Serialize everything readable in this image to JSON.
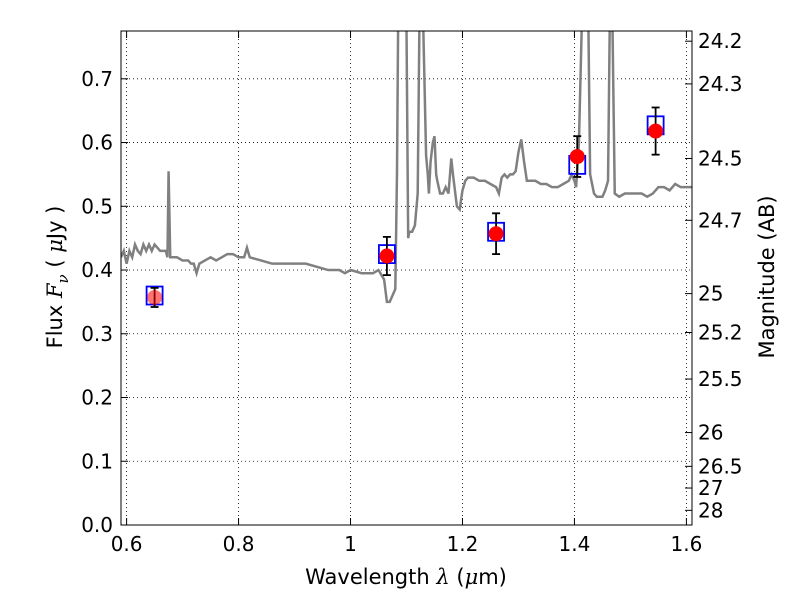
{
  "chart_data": {
    "type": "scatter",
    "title": "",
    "xlabel": {
      "prefix": "Wavelength",
      "symbol": "λ",
      "unit_open": " (",
      "unit_mu": "μ",
      "unit_rest": "m)"
    },
    "ylabel": {
      "prefix": "Flux",
      "symbol": "F",
      "subscript": "ν",
      "unit_open": " ( ",
      "unit_mu": "μ",
      "unit_rest": "Jy )"
    },
    "y2label": "Magnitude (AB)",
    "xlim": [
      0.59,
      1.61
    ],
    "ylim": [
      0.0,
      0.775
    ],
    "grid": true,
    "x_ticks": [
      {
        "value": 0.6,
        "label": "0.6"
      },
      {
        "value": 0.8,
        "label": "0.8"
      },
      {
        "value": 1.0,
        "label": "1"
      },
      {
        "value": 1.2,
        "label": "1.2"
      },
      {
        "value": 1.4,
        "label": "1.4"
      },
      {
        "value": 1.6,
        "label": "1.6"
      }
    ],
    "y_ticks": [
      {
        "value": 0.0,
        "label": "0.0"
      },
      {
        "value": 0.1,
        "label": "0.1"
      },
      {
        "value": 0.2,
        "label": "0.2"
      },
      {
        "value": 0.3,
        "label": "0.3"
      },
      {
        "value": 0.4,
        "label": "0.4"
      },
      {
        "value": 0.5,
        "label": "0.5"
      },
      {
        "value": 0.6,
        "label": "0.6"
      },
      {
        "value": 0.7,
        "label": "0.7"
      }
    ],
    "y2_ticks": [
      {
        "flux": 0.759,
        "label": "24.2"
      },
      {
        "flux": 0.692,
        "label": "24.3"
      },
      {
        "flux": 0.575,
        "label": "24.5"
      },
      {
        "flux": 0.478,
        "label": "24.7"
      },
      {
        "flux": 0.363,
        "label": "25"
      },
      {
        "flux": 0.302,
        "label": "25.2"
      },
      {
        "flux": 0.229,
        "label": "25.5"
      },
      {
        "flux": 0.145,
        "label": "26"
      },
      {
        "flux": 0.092,
        "label": "26.5"
      },
      {
        "flux": 0.058,
        "label": "27"
      },
      {
        "flux": 0.023,
        "label": "28"
      }
    ],
    "series": [
      {
        "kind": "model_spectrum",
        "color": "#808080",
        "points": [
          [
            0.59,
            0.42
          ],
          [
            0.595,
            0.43
          ],
          [
            0.6,
            0.41
          ],
          [
            0.605,
            0.43
          ],
          [
            0.61,
            0.42
          ],
          [
            0.615,
            0.44
          ],
          [
            0.62,
            0.43
          ],
          [
            0.625,
            0.425
          ],
          [
            0.63,
            0.44
          ],
          [
            0.635,
            0.43
          ],
          [
            0.64,
            0.44
          ],
          [
            0.645,
            0.43
          ],
          [
            0.65,
            0.44
          ],
          [
            0.655,
            0.435
          ],
          [
            0.66,
            0.43
          ],
          [
            0.665,
            0.43
          ],
          [
            0.67,
            0.43
          ],
          [
            0.673,
            0.42
          ],
          [
            0.675,
            0.555
          ],
          [
            0.678,
            0.42
          ],
          [
            0.69,
            0.42
          ],
          [
            0.7,
            0.415
          ],
          [
            0.71,
            0.415
          ],
          [
            0.715,
            0.41
          ],
          [
            0.72,
            0.41
          ],
          [
            0.725,
            0.395
          ],
          [
            0.73,
            0.41
          ],
          [
            0.74,
            0.415
          ],
          [
            0.75,
            0.42
          ],
          [
            0.76,
            0.415
          ],
          [
            0.77,
            0.42
          ],
          [
            0.78,
            0.425
          ],
          [
            0.79,
            0.425
          ],
          [
            0.8,
            0.42
          ],
          [
            0.81,
            0.42
          ],
          [
            0.815,
            0.435
          ],
          [
            0.82,
            0.42
          ],
          [
            0.84,
            0.415
          ],
          [
            0.86,
            0.41
          ],
          [
            0.88,
            0.41
          ],
          [
            0.9,
            0.41
          ],
          [
            0.92,
            0.41
          ],
          [
            0.94,
            0.405
          ],
          [
            0.96,
            0.4
          ],
          [
            0.98,
            0.4
          ],
          [
            0.99,
            0.395
          ],
          [
            1.0,
            0.4
          ],
          [
            1.02,
            0.395
          ],
          [
            1.04,
            0.395
          ],
          [
            1.05,
            0.4
          ],
          [
            1.06,
            0.385
          ],
          [
            1.065,
            0.35
          ],
          [
            1.07,
            0.35
          ],
          [
            1.08,
            0.37
          ],
          [
            1.083,
            0.55
          ],
          [
            1.085,
            0.78
          ],
          [
            1.1,
            0.78
          ],
          [
            1.103,
            0.45
          ],
          [
            1.105,
            0.46
          ],
          [
            1.11,
            0.46
          ],
          [
            1.115,
            0.47
          ],
          [
            1.12,
            0.52
          ],
          [
            1.123,
            0.78
          ],
          [
            1.13,
            0.78
          ],
          [
            1.133,
            0.66
          ],
          [
            1.135,
            0.58
          ],
          [
            1.138,
            0.55
          ],
          [
            1.14,
            0.52
          ],
          [
            1.143,
            0.57
          ],
          [
            1.147,
            0.6
          ],
          [
            1.15,
            0.61
          ],
          [
            1.153,
            0.55
          ],
          [
            1.155,
            0.54
          ],
          [
            1.16,
            0.52
          ],
          [
            1.165,
            0.52
          ],
          [
            1.17,
            0.53
          ],
          [
            1.175,
            0.52
          ],
          [
            1.18,
            0.575
          ],
          [
            1.183,
            0.55
          ],
          [
            1.19,
            0.5
          ],
          [
            1.195,
            0.495
          ],
          [
            1.2,
            0.525
          ],
          [
            1.205,
            0.54
          ],
          [
            1.21,
            0.545
          ],
          [
            1.22,
            0.545
          ],
          [
            1.23,
            0.54
          ],
          [
            1.24,
            0.54
          ],
          [
            1.25,
            0.535
          ],
          [
            1.26,
            0.53
          ],
          [
            1.265,
            0.52
          ],
          [
            1.27,
            0.545
          ],
          [
            1.275,
            0.55
          ],
          [
            1.28,
            0.545
          ],
          [
            1.285,
            0.55
          ],
          [
            1.29,
            0.55
          ],
          [
            1.295,
            0.555
          ],
          [
            1.3,
            0.585
          ],
          [
            1.305,
            0.605
          ],
          [
            1.31,
            0.57
          ],
          [
            1.315,
            0.54
          ],
          [
            1.32,
            0.54
          ],
          [
            1.33,
            0.54
          ],
          [
            1.34,
            0.535
          ],
          [
            1.35,
            0.535
          ],
          [
            1.36,
            0.53
          ],
          [
            1.37,
            0.53
          ],
          [
            1.38,
            0.535
          ],
          [
            1.39,
            0.54
          ],
          [
            1.395,
            0.55
          ],
          [
            1.4,
            0.54
          ],
          [
            1.403,
            0.53
          ],
          [
            1.408,
            0.6
          ],
          [
            1.413,
            0.78
          ],
          [
            1.425,
            0.78
          ],
          [
            1.428,
            0.55
          ],
          [
            1.435,
            0.52
          ],
          [
            1.44,
            0.515
          ],
          [
            1.45,
            0.515
          ],
          [
            1.455,
            0.525
          ],
          [
            1.46,
            0.54
          ],
          [
            1.463,
            0.78
          ],
          [
            1.468,
            0.78
          ],
          [
            1.472,
            0.52
          ],
          [
            1.48,
            0.515
          ],
          [
            1.49,
            0.52
          ],
          [
            1.5,
            0.52
          ],
          [
            1.52,
            0.52
          ],
          [
            1.53,
            0.515
          ],
          [
            1.54,
            0.52
          ],
          [
            1.55,
            0.53
          ],
          [
            1.56,
            0.53
          ],
          [
            1.57,
            0.525
          ],
          [
            1.58,
            0.535
          ],
          [
            1.59,
            0.53
          ],
          [
            1.6,
            0.53
          ],
          [
            1.61,
            0.53
          ]
        ]
      },
      {
        "kind": "model_band_flux",
        "marker": "square",
        "color": "#0000ff",
        "x": [
          0.65,
          1.065,
          1.26,
          1.405,
          1.545
        ],
        "y": [
          0.36,
          0.425,
          0.46,
          0.565,
          0.627
        ]
      },
      {
        "kind": "observed_flux",
        "marker": "circle",
        "color": "#ff0000",
        "x": [
          0.65,
          1.065,
          1.26,
          1.405,
          1.545
        ],
        "y": [
          0.357,
          0.422,
          0.457,
          0.578,
          0.618
        ],
        "yerr": [
          0.015,
          0.03,
          0.032,
          0.032,
          0.037
        ]
      }
    ]
  }
}
